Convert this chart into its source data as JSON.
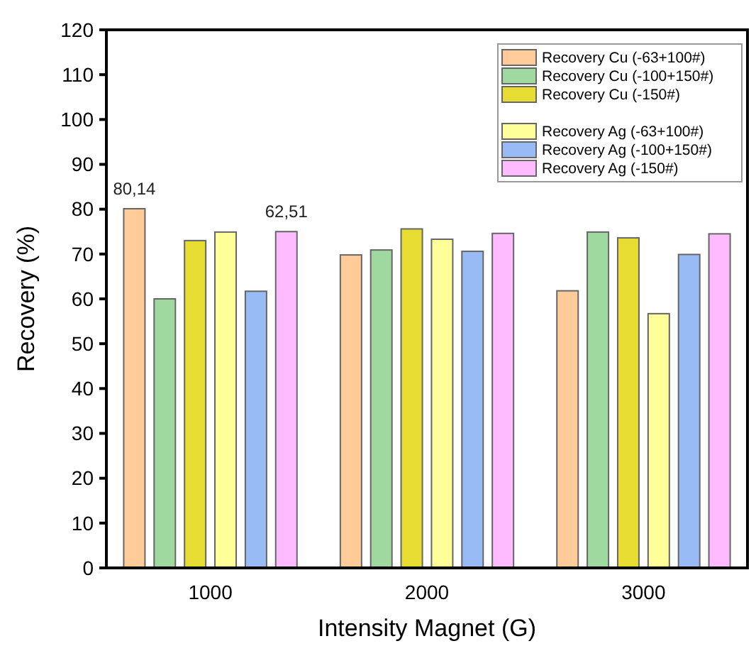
{
  "chart_data": {
    "type": "bar",
    "xlabel": "Intensity Magnet (G)",
    "ylabel": "Recovery (%)",
    "categories": [
      "1000",
      "2000",
      "3000"
    ],
    "ylim": [
      0,
      120
    ],
    "yticks": [
      0,
      10,
      20,
      30,
      40,
      50,
      60,
      70,
      80,
      90,
      100,
      110,
      120
    ],
    "grid": false,
    "legend": "top right",
    "series": [
      {
        "name": "Recovery Cu (-63+100#)",
        "color": "#ffcc99",
        "values": [
          80.1,
          69.8,
          61.8
        ]
      },
      {
        "name": "Recovery Cu (-100+150#)",
        "color": "#a0d9a0",
        "values": [
          60,
          70.9,
          74.9
        ]
      },
      {
        "name": "Recovery Cu (-150#)",
        "color": "#e6dc32",
        "values": [
          73,
          75.6,
          73.6
        ]
      },
      {
        "name": "Recovery Ag (-63+100#)",
        "color": "#ffff99",
        "values": [
          74.9,
          73.3,
          56.7
        ]
      },
      {
        "name": "Recovery Ag (-100+150#)",
        "color": "#99bbf5",
        "values": [
          61.7,
          70.6,
          69.9
        ]
      },
      {
        "name": "Recovery Ag (-150#)",
        "color": "#ffbbff",
        "values": [
          75,
          74.6,
          74.5
        ]
      }
    ],
    "annotations": [
      "80,14",
      "62,51"
    ]
  }
}
